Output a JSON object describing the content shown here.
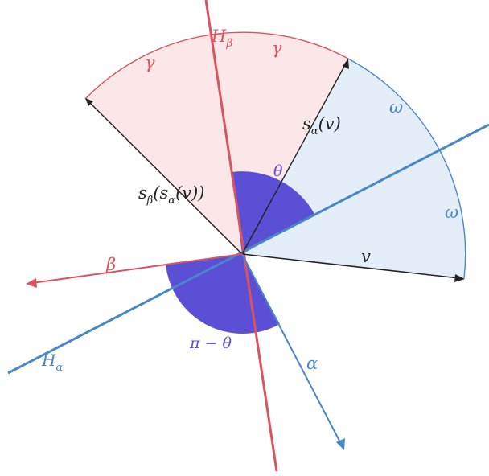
{
  "colors": {
    "red": "#d9545f",
    "red_fill": "#fce7e8",
    "blue": "#4a86c8",
    "blue_fill": "#e3eef9",
    "purple": "#5b4fd6",
    "black": "#222222"
  },
  "labels": {
    "h_beta": {
      "main": "H",
      "sub": "β"
    },
    "h_alpha": {
      "main": "H",
      "sub": "α"
    },
    "gamma_left": "γ",
    "gamma_right": "γ",
    "omega_upper": "ω",
    "omega_lower": "ω",
    "theta": "θ",
    "pi_minus_theta": "π − θ",
    "beta": "β",
    "alpha": "α",
    "v": "v",
    "s_alpha_v": {
      "s": "s",
      "sub": "α",
      "rest": "(v)"
    },
    "s_beta_s_alpha_v": {
      "s": "s",
      "sub": "β",
      "mid": "(s",
      "sub2": "α",
      "rest": "(v))"
    }
  }
}
